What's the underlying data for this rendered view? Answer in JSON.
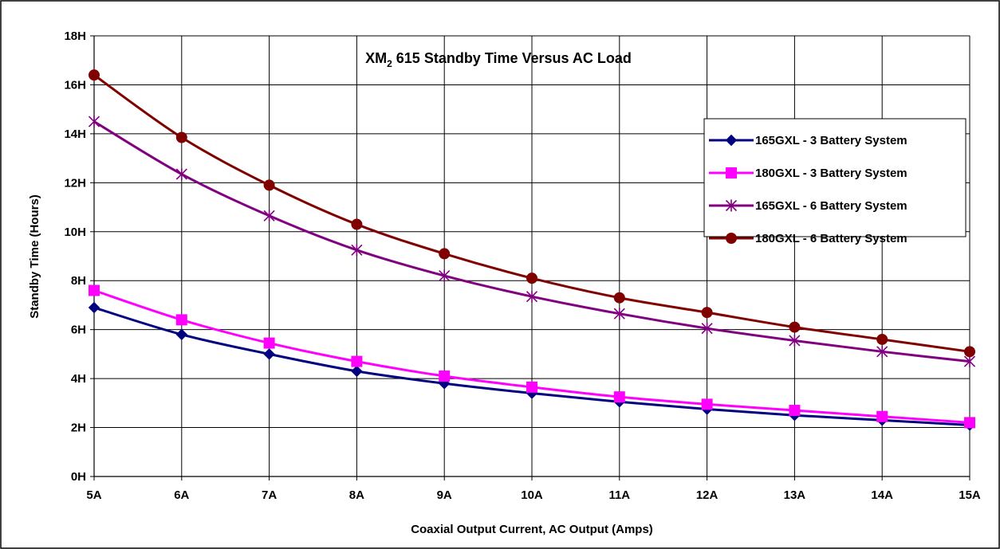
{
  "chart_data": {
    "type": "line",
    "title_parts": {
      "prefix": "XM",
      "subscript": "2",
      "suffix": " 615 Standby Time Versus AC Load"
    },
    "xlabel": "Coaxial Output Current, AC Output (Amps)",
    "ylabel": "Standby Time (Hours)",
    "x": [
      5,
      6,
      7,
      8,
      9,
      10,
      11,
      12,
      13,
      14,
      15
    ],
    "x_tick_labels": [
      "5A",
      "6A",
      "7A",
      "8A",
      "9A",
      "10A",
      "11A",
      "12A",
      "13A",
      "14A",
      "15A"
    ],
    "y_ticks": [
      0,
      2,
      4,
      6,
      8,
      10,
      12,
      14,
      16,
      18
    ],
    "y_tick_labels": [
      "0H",
      "2H",
      "4H",
      "6H",
      "8H",
      "10H",
      "12H",
      "14H",
      "16H",
      "18H"
    ],
    "xlim": [
      5,
      15
    ],
    "ylim": [
      0,
      18
    ],
    "grid": true,
    "legend_position": "top-right",
    "series": [
      {
        "name": "165GXL - 3 Battery System",
        "color": "#000080",
        "marker": "diamond",
        "values": [
          6.9,
          5.8,
          5.0,
          4.3,
          3.8,
          3.4,
          3.05,
          2.75,
          2.5,
          2.3,
          2.1
        ]
      },
      {
        "name": "180GXL - 3 Battery System",
        "color": "#ff00ff",
        "marker": "square",
        "values": [
          7.6,
          6.4,
          5.45,
          4.7,
          4.1,
          3.65,
          3.25,
          2.95,
          2.7,
          2.45,
          2.2
        ]
      },
      {
        "name": "165GXL - 6 Battery System",
        "color": "#800080",
        "marker": "star",
        "values": [
          14.5,
          12.35,
          10.65,
          9.25,
          8.2,
          7.35,
          6.65,
          6.05,
          5.55,
          5.1,
          4.7
        ]
      },
      {
        "name": "180GXL - 6 Battery System",
        "color": "#800000",
        "marker": "circle",
        "values": [
          16.4,
          13.85,
          11.9,
          10.3,
          9.1,
          8.1,
          7.3,
          6.7,
          6.1,
          5.6,
          5.1
        ]
      }
    ]
  }
}
